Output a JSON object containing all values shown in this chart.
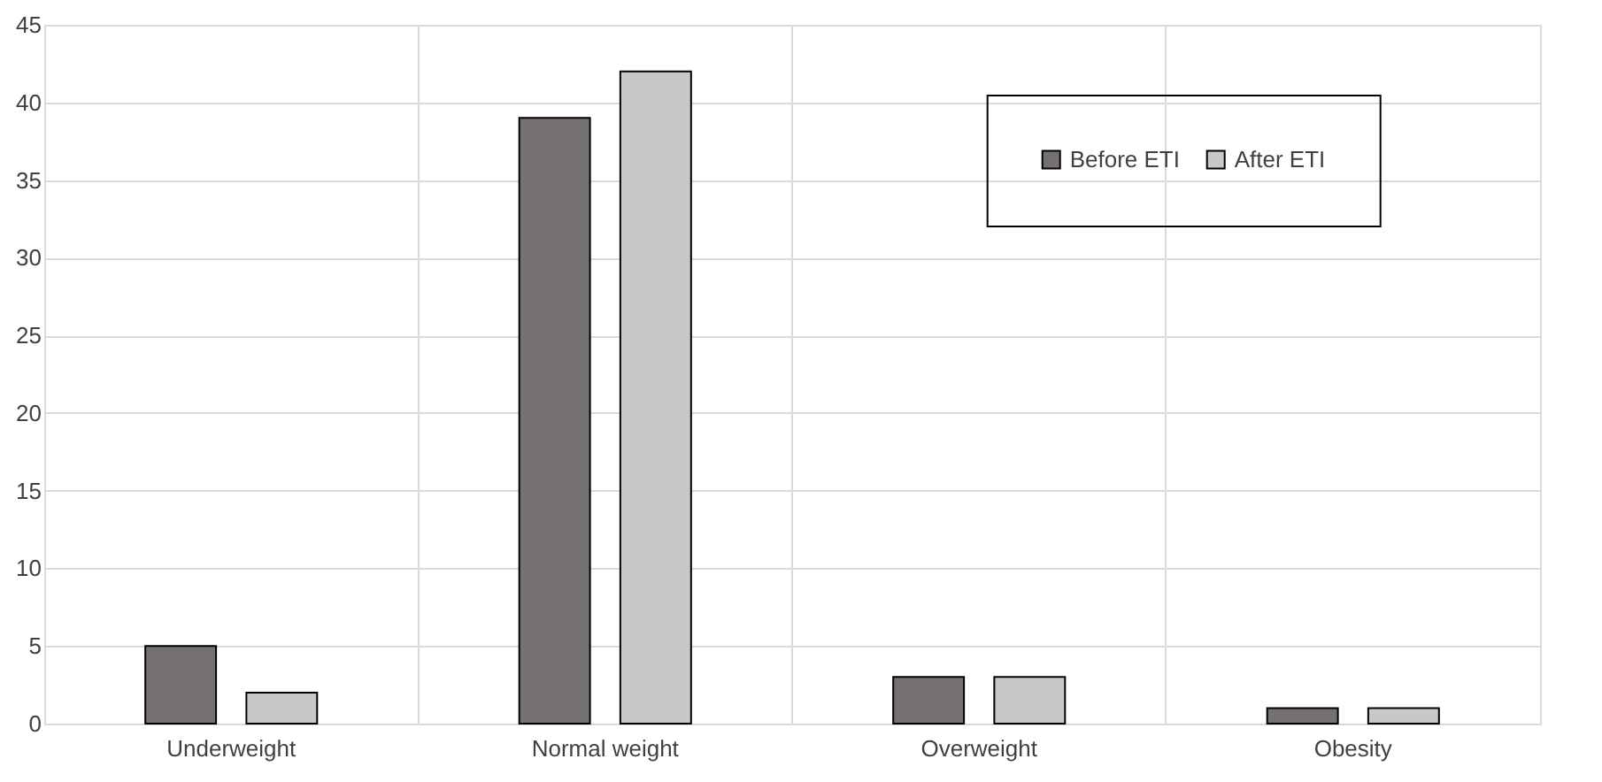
{
  "chart_data": {
    "type": "bar",
    "categories": [
      "Underweight",
      "Normal weight",
      "Overweight",
      "Obesity"
    ],
    "series": [
      {
        "name": "Before ETI",
        "color": "#767171",
        "values": [
          5,
          39,
          3,
          1
        ]
      },
      {
        "name": "After ETI",
        "color": "#c8c8c8",
        "values": [
          2,
          42,
          3,
          1
        ]
      }
    ],
    "ylim": [
      0,
      45
    ],
    "yticks": [
      0,
      5,
      10,
      15,
      20,
      25,
      30,
      35,
      40,
      45
    ],
    "grid": true,
    "legend": "top right"
  }
}
